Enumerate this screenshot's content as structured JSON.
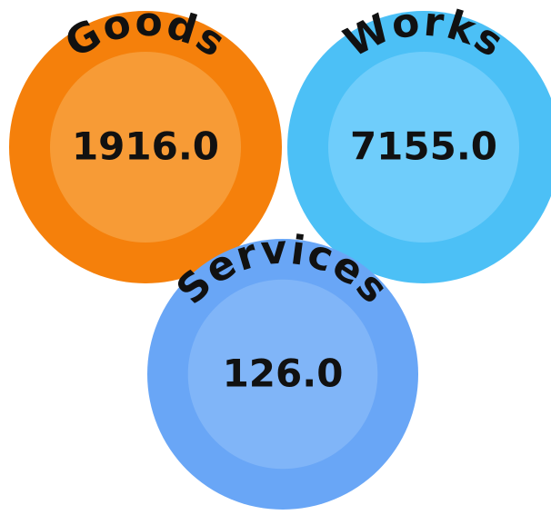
{
  "chart_data": {
    "type": "circles",
    "categories": [
      "Goods",
      "Works",
      "Services"
    ],
    "values": [
      1916.0,
      7155.0,
      126.0
    ],
    "value_labels": [
      "1916.0",
      "7155.0",
      "126.0"
    ],
    "colors": [
      "#f5800b",
      "#4cc0f6",
      "#69a6f6"
    ],
    "inner_colors": [
      "#f79b36",
      "#6fcdfb",
      "#80b5f8"
    ]
  }
}
